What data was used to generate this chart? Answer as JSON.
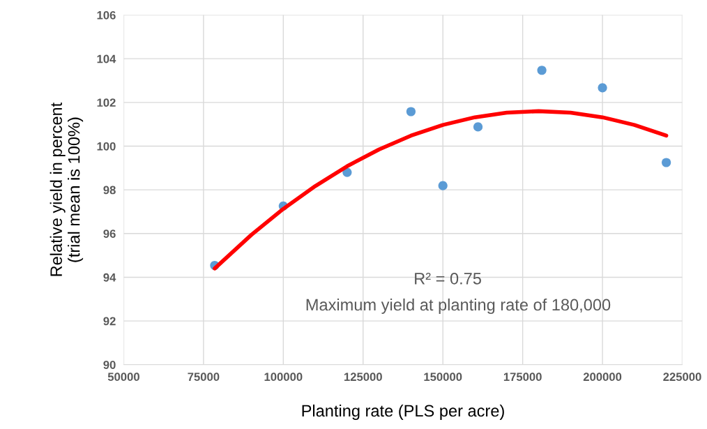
{
  "chart_data": {
    "type": "scatter",
    "xlabel": "Planting rate (PLS per acre)",
    "ylabel": "Relative yield in percent\n(trial mean is 100%)",
    "xlim": [
      50000,
      225000
    ],
    "xticks": [
      50000,
      75000,
      100000,
      125000,
      150000,
      175000,
      200000,
      225000
    ],
    "ylim": [
      90,
      106
    ],
    "yticks": [
      90,
      92,
      94,
      96,
      98,
      100,
      102,
      104,
      106
    ],
    "grid": true,
    "marker": "circle",
    "series": [
      {
        "color": "#5b9bd5",
        "x": [
          78500,
          100000,
          120000,
          140000,
          150000,
          161000,
          181000,
          200000,
          220000
        ],
        "values": [
          94.54,
          97.26,
          98.8,
          101.58,
          98.19,
          100.88,
          103.47,
          102.67,
          99.25
        ]
      },
      {
        "type": "line",
        "color": "#ff0000",
        "marker": "none",
        "x": [
          78500,
          90000,
          100000,
          110000,
          120000,
          130000,
          140000,
          150000,
          160000,
          170000,
          180000,
          190000,
          200000,
          210000,
          220000
        ],
        "values": [
          94.4,
          95.94,
          97.13,
          98.17,
          99.08,
          99.85,
          100.48,
          100.97,
          101.32,
          101.53,
          101.6,
          101.53,
          101.32,
          100.97,
          100.48
        ]
      }
    ],
    "annotations": [
      "R² = 0.75",
      "Maximum yield at planting rate of 180,000"
    ]
  }
}
